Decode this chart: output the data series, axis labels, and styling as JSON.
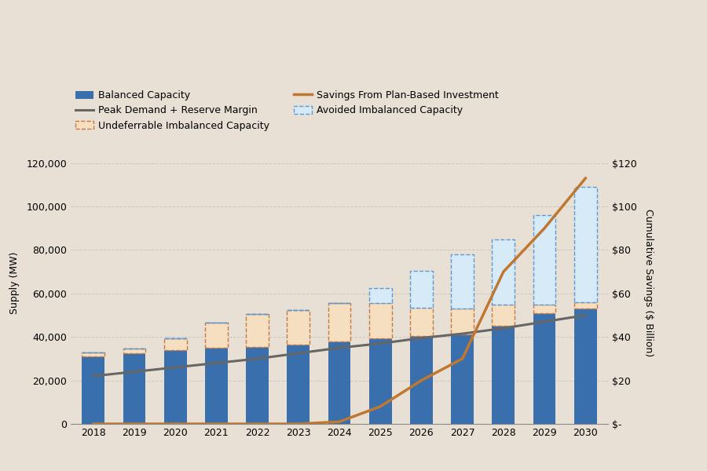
{
  "years": [
    2018,
    2019,
    2020,
    2021,
    2022,
    2023,
    2024,
    2025,
    2026,
    2027,
    2028,
    2029,
    2030
  ],
  "balanced_capacity": [
    31000,
    32500,
    34000,
    35000,
    35500,
    36500,
    38000,
    39500,
    40500,
    41000,
    45000,
    51000,
    53000
  ],
  "undeferrable_imbalanced": [
    2000,
    2000,
    5500,
    11500,
    15000,
    16000,
    17500,
    16000,
    13000,
    12000,
    10000,
    4000,
    3000
  ],
  "avoided_imbalanced": [
    0,
    0,
    0,
    0,
    0,
    0,
    0,
    7000,
    17000,
    25000,
    30000,
    41000,
    53000
  ],
  "peak_demand": [
    22000,
    24000,
    26000,
    28000,
    30000,
    32500,
    35000,
    37000,
    39500,
    41500,
    44000,
    47000,
    50000
  ],
  "savings_billion": [
    0,
    0,
    0,
    0,
    0,
    0,
    1,
    8,
    20,
    30,
    70,
    90,
    113
  ],
  "background_color": "#e8e0d5",
  "bar_color": "#3a6fad",
  "undeferrable_color": "#f5dfc0",
  "undeferrable_edge_color": "#c87941",
  "avoided_color": "#d6eaf8",
  "avoided_edge_color": "#5b9bd5",
  "peak_line_color": "#666666",
  "savings_line_color": "#c07830",
  "grid_color": "#c8c8c8",
  "ylabel_left": "Supply (MW)",
  "ylabel_right": "Cumulative Savings ($ Billion)",
  "ylim_left": [
    0,
    130000
  ],
  "ylim_right": [
    0,
    130
  ],
  "yticks_left": [
    0,
    20000,
    40000,
    60000,
    80000,
    100000,
    120000
  ],
  "yticks_right": [
    0,
    20,
    40,
    60,
    80,
    100,
    120
  ],
  "ytick_labels_right": [
    "$-",
    "$20",
    "$40",
    "$60",
    "$80",
    "$100",
    "$120"
  ],
  "legend_labels": [
    "Balanced Capacity",
    "Undeferrable Imbalanced Capacity",
    "Avoided Imbalanced Capacity",
    "Peak Demand + Reserve Margin",
    "Savings From Plan-Based Investment"
  ]
}
